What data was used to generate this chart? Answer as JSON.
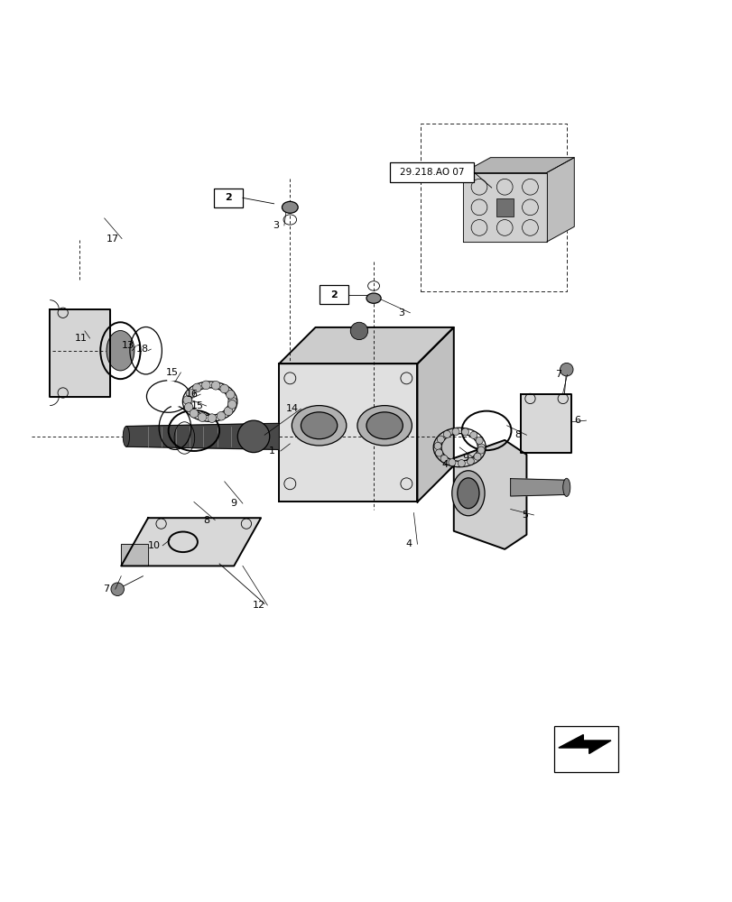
{
  "bg_color": "#ffffff",
  "line_color": "#000000",
  "fig_width": 8.12,
  "fig_height": 10.0,
  "dpi": 100,
  "ref_label": "29.218.AO 07"
}
